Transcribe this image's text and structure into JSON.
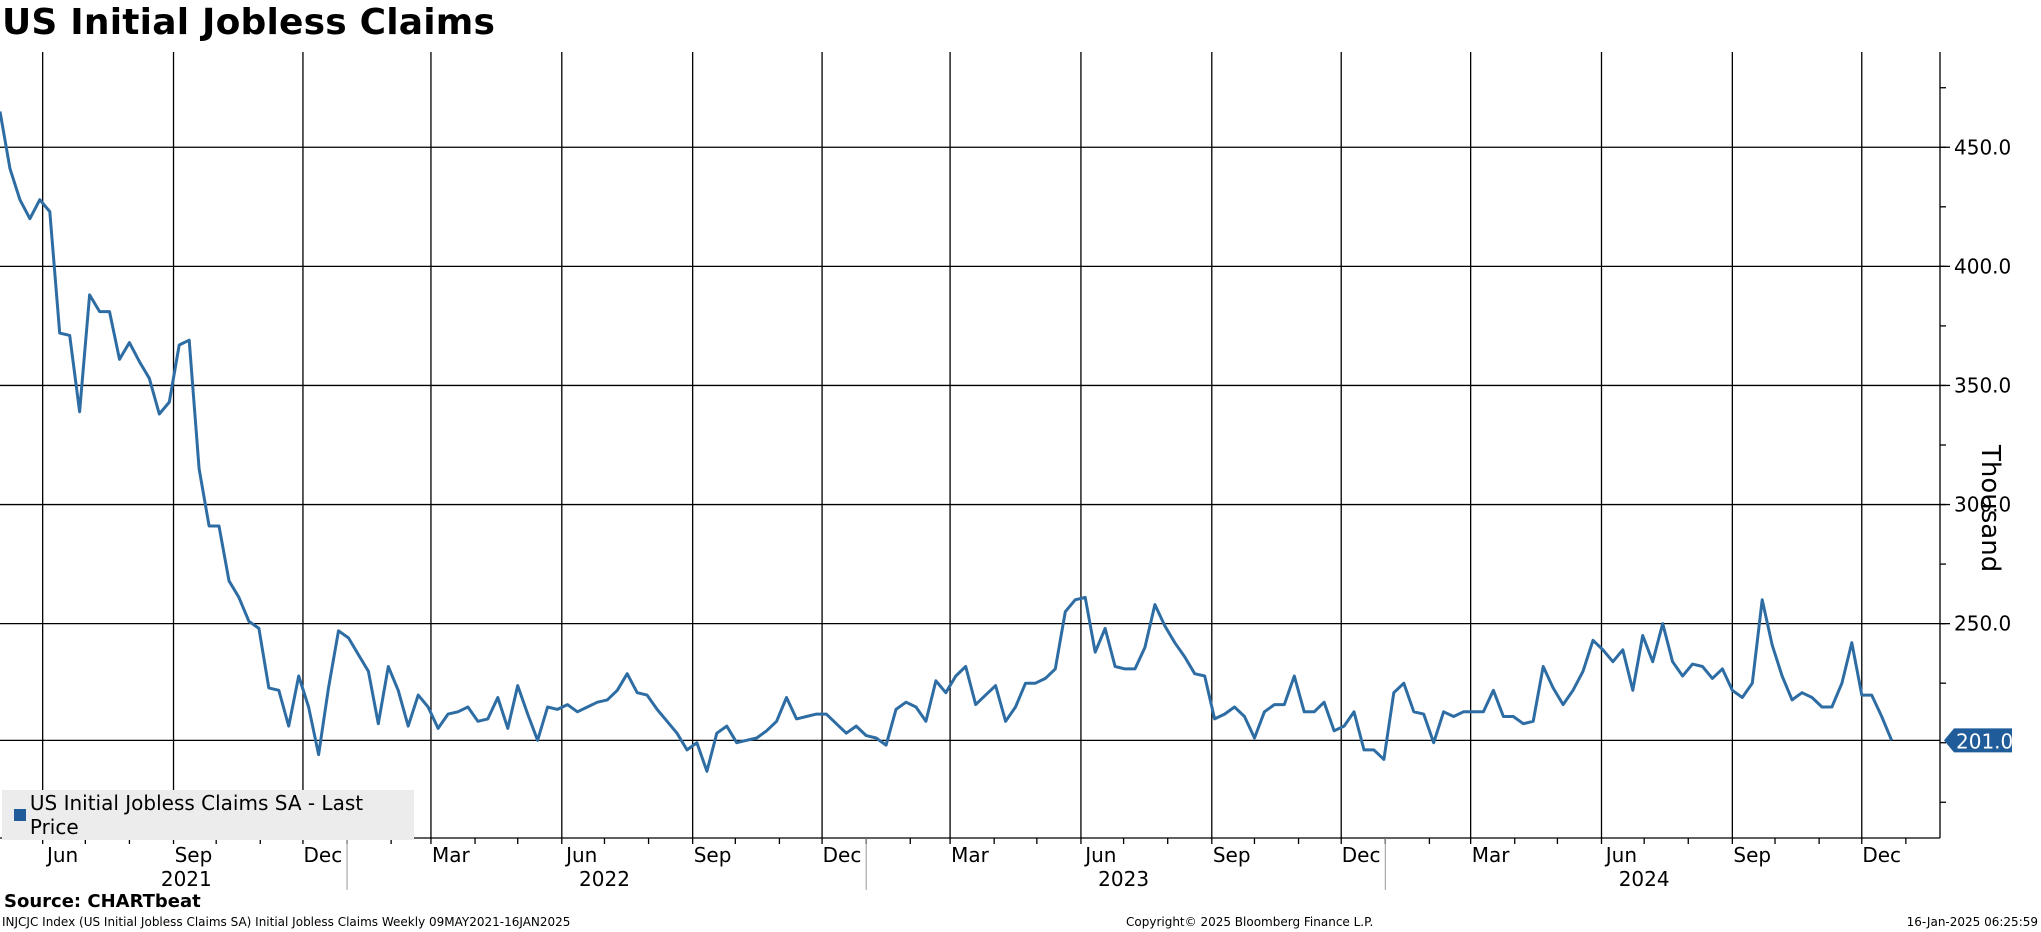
{
  "title": "US Initial Jobless Claims",
  "legend": {
    "label": "US Initial Jobless Claims SA - Last Price",
    "color": "#1f5c99"
  },
  "source": "Source: CHARTbeat",
  "footer": {
    "left": "INJCJC Index (US Initial Jobless Claims SA) Initial Jobless Claims  Weekly 09MAY2021-16JAN2025",
    "middle": "Copyright© 2025 Bloomberg Finance L.P.",
    "right": "16-Jan-2025 06:25:59"
  },
  "colors": {
    "line": "#2e6da4",
    "last_badge": "#1f5c99"
  },
  "chart_data": {
    "type": "line",
    "title": "US Initial Jobless Claims",
    "ylabel": "Thousand",
    "y_axis_side": "right",
    "ylim": [
      160,
      490
    ],
    "y_ticks": [
      "450.0",
      "400.0",
      "350.0",
      "300.0",
      "250.0"
    ],
    "y_tick_values": [
      450,
      400,
      350,
      300,
      250
    ],
    "last_value_label": "201.0",
    "last_value": 201,
    "xlim": [
      "2021-05-02",
      "2025-01-25"
    ],
    "x_tick_labels": [
      {
        "label": "Jun",
        "date": "2021-06-15"
      },
      {
        "label": "Sep",
        "date": "2021-09-15"
      },
      {
        "label": "Dec",
        "date": "2021-12-15"
      },
      {
        "label": "Mar",
        "date": "2022-03-15"
      },
      {
        "label": "Jun",
        "date": "2022-06-15"
      },
      {
        "label": "Sep",
        "date": "2022-09-15"
      },
      {
        "label": "Dec",
        "date": "2022-12-15"
      },
      {
        "label": "Mar",
        "date": "2023-03-15"
      },
      {
        "label": "Jun",
        "date": "2023-06-15"
      },
      {
        "label": "Sep",
        "date": "2023-09-15"
      },
      {
        "label": "Dec",
        "date": "2023-12-15"
      },
      {
        "label": "Mar",
        "date": "2024-03-15"
      },
      {
        "label": "Jun",
        "date": "2024-06-15"
      },
      {
        "label": "Sep",
        "date": "2024-09-15"
      },
      {
        "label": "Dec",
        "date": "2024-12-15"
      }
    ],
    "year_labels": [
      {
        "label": "2021",
        "date": "2021-09-10"
      },
      {
        "label": "2022",
        "date": "2022-07-01"
      },
      {
        "label": "2023",
        "date": "2023-07-01"
      },
      {
        "label": "2024",
        "date": "2024-07-01"
      }
    ],
    "year_separators": [
      "2022-01-01",
      "2023-01-01",
      "2024-01-01"
    ],
    "month_gridlines": [
      "2021-06-01",
      "2021-09-01",
      "2021-12-01",
      "2022-03-01",
      "2022-06-01",
      "2022-09-01",
      "2022-12-01",
      "2023-03-01",
      "2023-06-01",
      "2023-09-01",
      "2023-12-01",
      "2024-03-01",
      "2024-06-01",
      "2024-09-01",
      "2024-12-01"
    ],
    "grid": true,
    "legend_position": "bottom-left",
    "series": [
      {
        "name": "US Initial Jobless Claims SA - Last Price",
        "start_date": "2021-05-02",
        "frequency": "weekly",
        "values": [
          465,
          441,
          428,
          420,
          428,
          423,
          372,
          371,
          339,
          388,
          381,
          381,
          361,
          368,
          360,
          353,
          338,
          343,
          367,
          369,
          315,
          291,
          291,
          268,
          261,
          251,
          248,
          223,
          222,
          207,
          228,
          215,
          195,
          223,
          247,
          244,
          237,
          230,
          208,
          232,
          222,
          207,
          220,
          215,
          206,
          212,
          213,
          215,
          209,
          210,
          219,
          206,
          224,
          212,
          201,
          215,
          214,
          216,
          213,
          215,
          217,
          218,
          222,
          229,
          221,
          220,
          214,
          209,
          204,
          197,
          200,
          188,
          204,
          207,
          200,
          201,
          202,
          205,
          209,
          219,
          210,
          211,
          212,
          212,
          208,
          204,
          207,
          203,
          202,
          199,
          214,
          217,
          215,
          209,
          226,
          221,
          228,
          232,
          216,
          220,
          224,
          209,
          215,
          225,
          225,
          227,
          231,
          255,
          260,
          261,
          238,
          248,
          232,
          231,
          231,
          240,
          258,
          249,
          242,
          236,
          229,
          228,
          210,
          212,
          215,
          211,
          202,
          213,
          216,
          216,
          228,
          213,
          213,
          217,
          205,
          207,
          213,
          197,
          197,
          193,
          221,
          225,
          213,
          212,
          200,
          213,
          211,
          213,
          213,
          213,
          222,
          211,
          211,
          208,
          209,
          232,
          223,
          216,
          222,
          230,
          243,
          239,
          234,
          239,
          222,
          245,
          234,
          250,
          234,
          228,
          233,
          232,
          227,
          231,
          222,
          219,
          225,
          260,
          241,
          228,
          218,
          221,
          219,
          215,
          215,
          225,
          242,
          220,
          220,
          211,
          201
        ]
      }
    ]
  }
}
